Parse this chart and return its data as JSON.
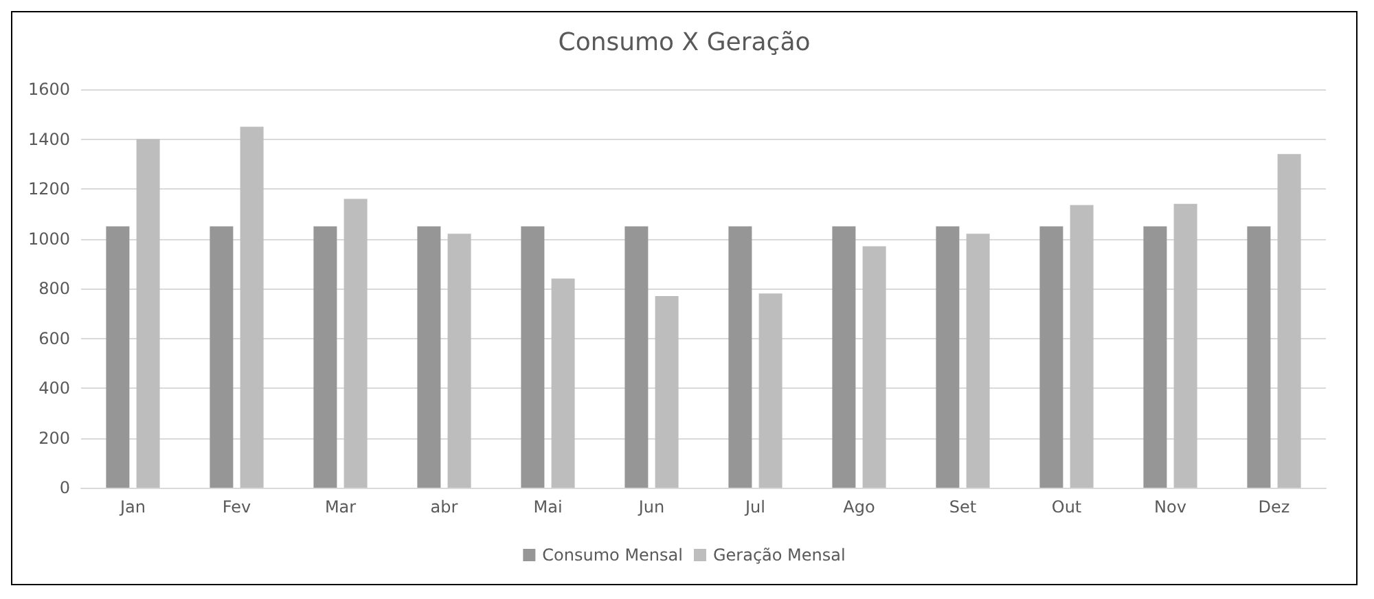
{
  "chart_data": {
    "type": "bar",
    "title": "Consumo X Geração",
    "categories": [
      "Jan",
      "Fev",
      "Mar",
      "abr",
      "Mai",
      "Jun",
      "Jul",
      "Ago",
      "Set",
      "Out",
      "Nov",
      "Dez"
    ],
    "series": [
      {
        "name": "Consumo Mensal",
        "color": "#969696",
        "values": [
          1050,
          1050,
          1050,
          1050,
          1050,
          1050,
          1050,
          1050,
          1050,
          1050,
          1050,
          1050
        ]
      },
      {
        "name": "Geração Mensal",
        "color": "#bdbdbd",
        "values": [
          1400,
          1450,
          1160,
          1020,
          840,
          770,
          780,
          970,
          1020,
          1135,
          1140,
          1340
        ]
      }
    ],
    "ylim": [
      0,
      1600
    ],
    "yticks": [
      0,
      200,
      400,
      600,
      800,
      1000,
      1200,
      1400,
      1600
    ],
    "grid": "y",
    "legend": "bottom"
  }
}
